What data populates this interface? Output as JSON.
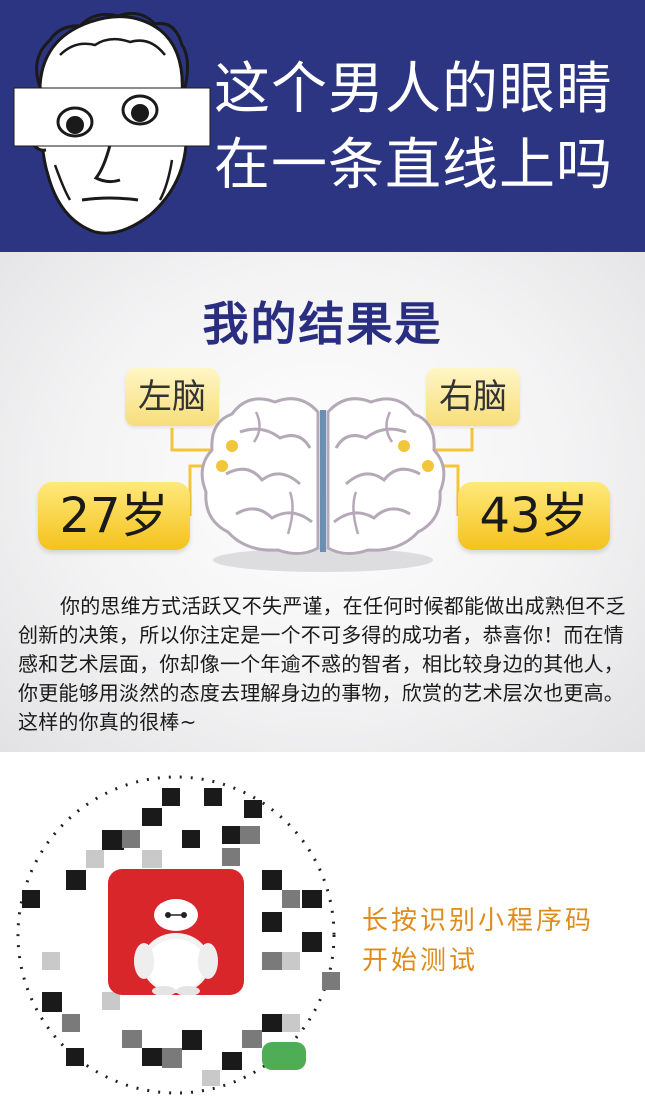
{
  "header": {
    "title_line1": "这个男人的眼睛",
    "title_line2": "在一条直线上吗",
    "bg_color": "#2c3582"
  },
  "result": {
    "title": "我的结果是",
    "left_label": "左脑",
    "right_label": "右脑",
    "left_age": "27岁",
    "right_age": "43岁",
    "description": "你的思维方式活跃又不失严谨，在任何时候都能做出成熟但不乏创新的决策，所以你注定是一个不可多得的成功者，恭喜你！而在情感和艺术层面，你却像一个年逾不惑的智者，相比较身边的其他人，你更能够用淡然的态度去理解身边的事物，欣赏的艺术层次也更高。这样的你真的很棒~",
    "accent_color": "#f4c21c",
    "title_color": "#2a2e80"
  },
  "qr": {
    "instruction_line1": "长按识别小程序码",
    "instruction_line2": "开始测试",
    "text_color": "#e08c1b",
    "icon_color": "#d8262b"
  }
}
